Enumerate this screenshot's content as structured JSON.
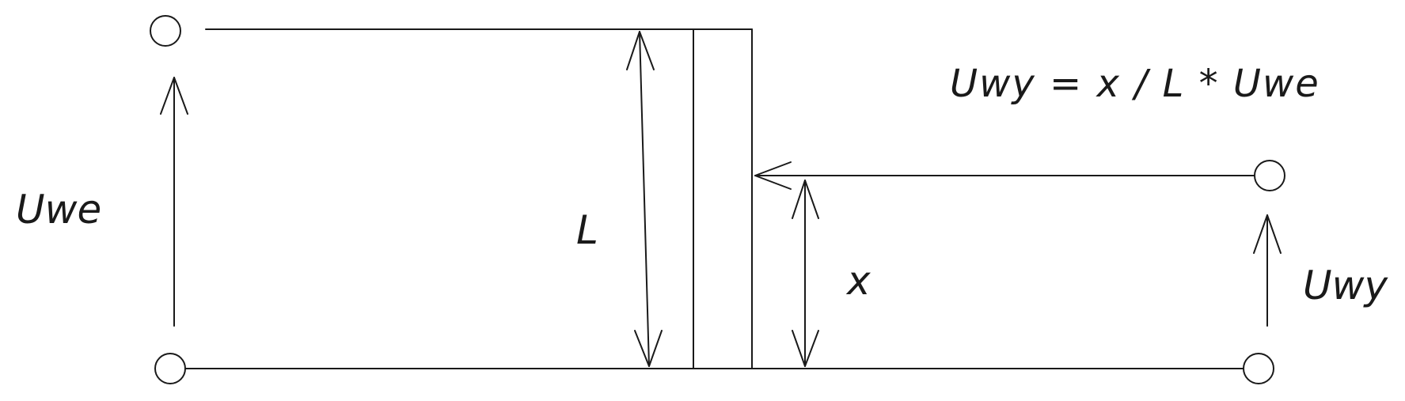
{
  "diagram": {
    "labels": {
      "input_voltage": "Uwe",
      "length": "L",
      "position": "x",
      "output_voltage": "Uwy",
      "formula": "Uwy = x / L * Uwe"
    },
    "terminals": [
      "input-top-terminal",
      "input-bottom-terminal",
      "output-wiper-terminal",
      "output-bottom-terminal"
    ],
    "colors": {
      "stroke": "#1a1a1a",
      "background": "#ffffff"
    }
  }
}
